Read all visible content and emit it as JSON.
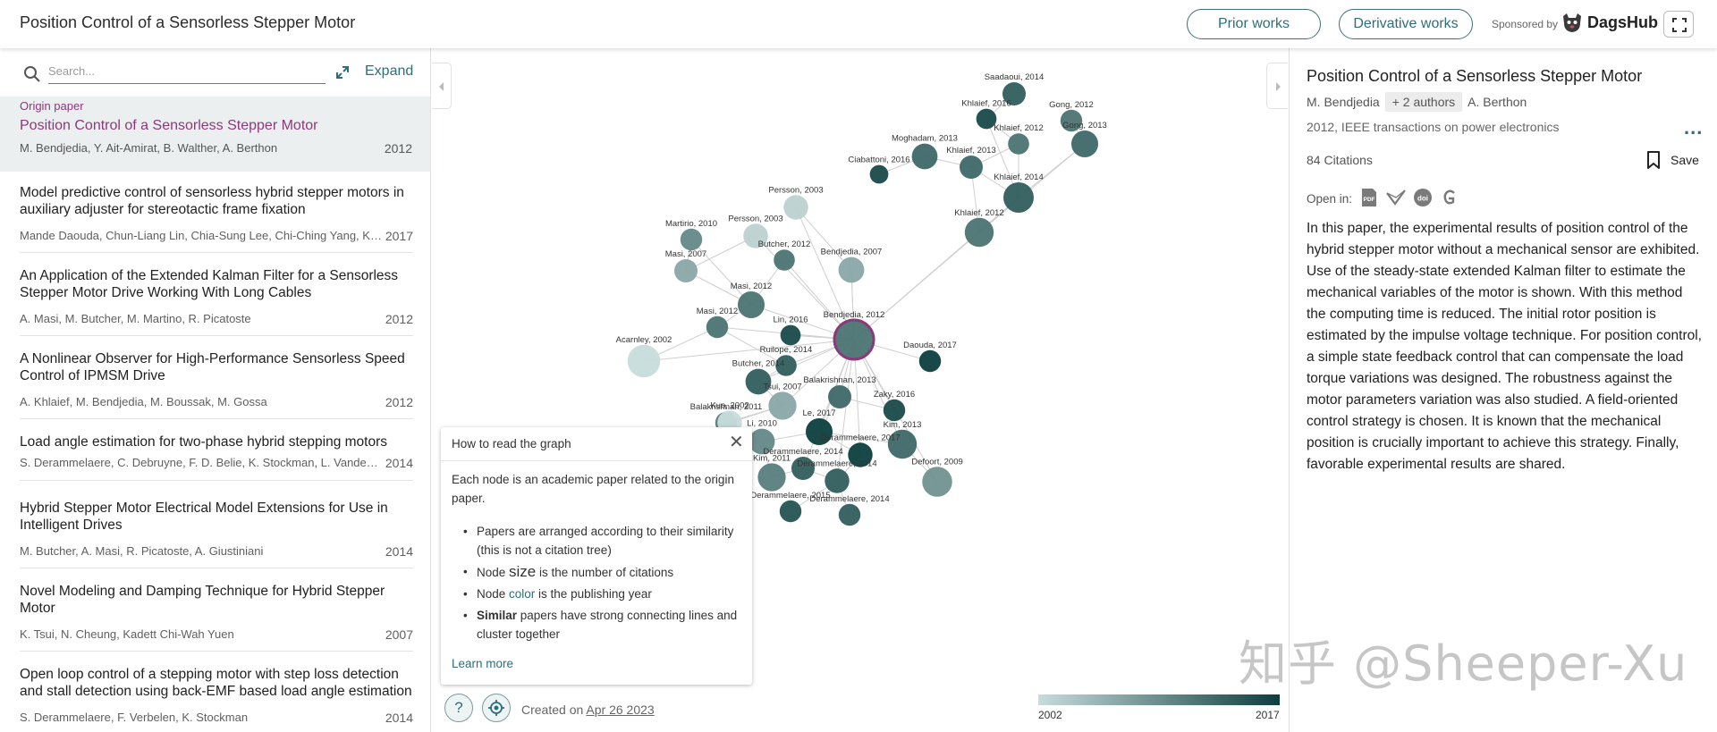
{
  "header": {
    "title": "Position Control of a Sensorless Stepper Motor",
    "prior_works": "Prior works",
    "derivative_works": "Derivative works",
    "sponsored_by": "Sponsored by",
    "sponsor_name": "DagsHub"
  },
  "left": {
    "search_placeholder": "Search...",
    "expand_label": "Expand",
    "origin": {
      "tag": "Origin paper",
      "title": "Position Control of a Sensorless Stepper Motor",
      "authors": "M. Bendjedia, Y. Ait-Amirat, B. Walther, A. Berthon",
      "year": "2012"
    },
    "papers": [
      {
        "title": "Model predictive control of sensorless hybrid stepper motors in auxiliary adjuster for stereotactic frame fixation",
        "authors": "Mande Daouda, Chun-Liang Lin, Chia-Sung Lee, Chi-Ching Yang, Kuo-Hua Chang",
        "year": "2017"
      },
      {
        "title": "An Application of the Extended Kalman Filter for a Sensorless Stepper Motor Drive Working With Long Cables",
        "authors": "A. Masi, M. Butcher, M. Martino, R. Picatoste",
        "year": "2012"
      },
      {
        "title": "A Nonlinear Observer for High-Performance Sensorless Speed Control of IPMSM Drive",
        "authors": "A. Khlaief, M. Bendjedia, M. Boussak, M. Gossa",
        "year": "2012"
      },
      {
        "title": "Load angle estimation for two-phase hybrid stepping motors",
        "authors": "S. Derammelaere, C. Debruyne, F. D. Belie, K. Stockman, L. Vandevelde",
        "year": "2014"
      },
      {
        "title": "Hybrid Stepper Motor Electrical Model Extensions for Use in Intelligent Drives",
        "authors": "M. Butcher, A. Masi, R. Picatoste, A. Giustiniani",
        "year": "2014"
      },
      {
        "title": "Novel Modeling and Damping Technique for Hybrid Stepper Motor",
        "authors": "K. Tsui, N. Cheung, Kadett Chi-Wah Yuen",
        "year": "2007"
      },
      {
        "title": "Open loop control of a stepping motor with step loss detection and stall detection using back-EMF based load angle estimation",
        "authors": "S. Derammelaere, F. Verbelen, K. Stockman",
        "year": "2014"
      }
    ]
  },
  "graph": {
    "nodes": [
      {
        "label": "Saadaoui, 2014",
        "year": 2014,
        "citations": 12
      },
      {
        "label": "Khlaief, 2016",
        "year": 2016,
        "citations": 8
      },
      {
        "label": "Gong, 2012",
        "year": 2012,
        "citations": 10
      },
      {
        "label": "Khlaief, 2012",
        "year": 2012,
        "citations": 9
      },
      {
        "label": "Gong, 2013",
        "year": 2013,
        "citations": 18
      },
      {
        "label": "Moghadam, 2013",
        "year": 2013,
        "citations": 16
      },
      {
        "label": "Khlaief, 2013",
        "year": 2013,
        "citations": 12
      },
      {
        "label": "Ciabattoni, 2016",
        "year": 2016,
        "citations": 6
      },
      {
        "label": "Khlaief, 2014",
        "year": 2014,
        "citations": 25
      },
      {
        "label": "Persson, 2003",
        "year": 2003,
        "citations": 14
      },
      {
        "label": "Khlaief, 2012",
        "year": 2012,
        "citations": 22
      },
      {
        "label": "Martirio, 2010",
        "year": 2010,
        "citations": 10
      },
      {
        "label": "Persson, 2003",
        "year": 2003,
        "citations": 14
      },
      {
        "label": "Butcher, 2012",
        "year": 2012,
        "citations": 9
      },
      {
        "label": "Masi, 2007",
        "year": 2007,
        "citations": 12
      },
      {
        "label": "Bendjedia, 2007",
        "year": 2007,
        "citations": 16
      },
      {
        "label": "Masi, 2012",
        "year": 2012,
        "citations": 18
      },
      {
        "label": "Masi, 2012",
        "year": 2012,
        "citations": 10
      },
      {
        "label": "Lin, 2016",
        "year": 2016,
        "citations": 8
      },
      {
        "label": "Bendjedia, 2012",
        "year": 2012,
        "citations": 84
      },
      {
        "label": "Acarnley, 2002",
        "year": 2002,
        "citations": 30
      },
      {
        "label": "Ruilope, 2014",
        "year": 2014,
        "citations": 9
      },
      {
        "label": "Daouda, 2017",
        "year": 2017,
        "citations": 10
      },
      {
        "label": "Butcher, 2014",
        "year": 2014,
        "citations": 16
      },
      {
        "label": "Balakrishnan, 2013",
        "year": 2013,
        "citations": 12
      },
      {
        "label": "Tsui, 2007",
        "year": 2007,
        "citations": 20
      },
      {
        "label": "Zaky, 2016",
        "year": 2016,
        "citations": 10
      },
      {
        "label": "Balakrishnan, 2011",
        "year": 2011,
        "citations": 10
      },
      {
        "label": "Kuo, 2002",
        "year": 2002,
        "citations": 14
      },
      {
        "label": "Le, 2017",
        "year": 2017,
        "citations": 18
      },
      {
        "label": "Kim, 2013",
        "year": 2013,
        "citations": 22
      },
      {
        "label": "Derammelaere, 2017",
        "year": 2017,
        "citations": 14
      },
      {
        "label": "Li, 2010",
        "year": 2010,
        "citations": 16
      },
      {
        "label": "Derammelaere, 2014",
        "year": 2014,
        "citations": 12
      },
      {
        "label": "Kim, 2011",
        "year": 2011,
        "citations": 20
      },
      {
        "label": "Derammelaere, 2014",
        "year": 2014,
        "citations": 14
      },
      {
        "label": "Defoort, 2009",
        "year": 2009,
        "citations": 24
      },
      {
        "label": "Derammelaere, 2015",
        "year": 2015,
        "citations": 10
      },
      {
        "label": "Derammelaere, 2014",
        "year": 2014,
        "citations": 10
      }
    ]
  },
  "help": {
    "title": "How to read the graph",
    "intro": "Each node is an academic paper related to the origin paper.",
    "b1": "Papers are arranged according to their similarity (this is not a citation tree)",
    "b2_pre": "Node ",
    "b2_key": "size",
    "b2_post": " is the number of citations",
    "b3_pre": "Node ",
    "b3_key": "color",
    "b3_post": " is the publishing year",
    "b4_key": "Similar",
    "b4_post": " papers have strong connecting lines and cluster together",
    "learn_more": "Learn more"
  },
  "footer": {
    "help_symbol": "?",
    "created_prefix": "Created on ",
    "created_date": "Apr 26 2023",
    "year_start": "2002",
    "year_end": "2017"
  },
  "right": {
    "title": "Position Control of a Sensorless Stepper Motor",
    "author_first": "M. Bendjedia",
    "author_more": "+ 2 authors",
    "author_last": "A. Berthon",
    "venue": "2012, IEEE transactions on power electronics",
    "more": "...",
    "citations": "84 Citations",
    "save": "Save",
    "open_in": "Open in:",
    "abstract": "In this paper, the experimental results of position control of the hybrid stepper motor without a mechanical sensor are exhibited. Use of the steady-state extended Kalman filter to estimate the mechanical variables of the motor is shown. With this method the computing time is reduced. The initial rotor position is estimated by the impulse voltage technique. For position control, a simple state feedback control that can compensate the load torque variations was designed. The robustness against the motor parameters variation was also studied. A field-oriented control strategy is chosen. It is known that the mechanical position is crucially important to achieve this strategy. Finally, favorable experimental results are shared."
  },
  "watermark": "知乎 @Sheeper-Xu",
  "colors": {
    "accent": "#2e6d7a",
    "origin": "#8a3a7a",
    "year_old": "#c8dcdc",
    "year_new": "#0d3e3e"
  }
}
